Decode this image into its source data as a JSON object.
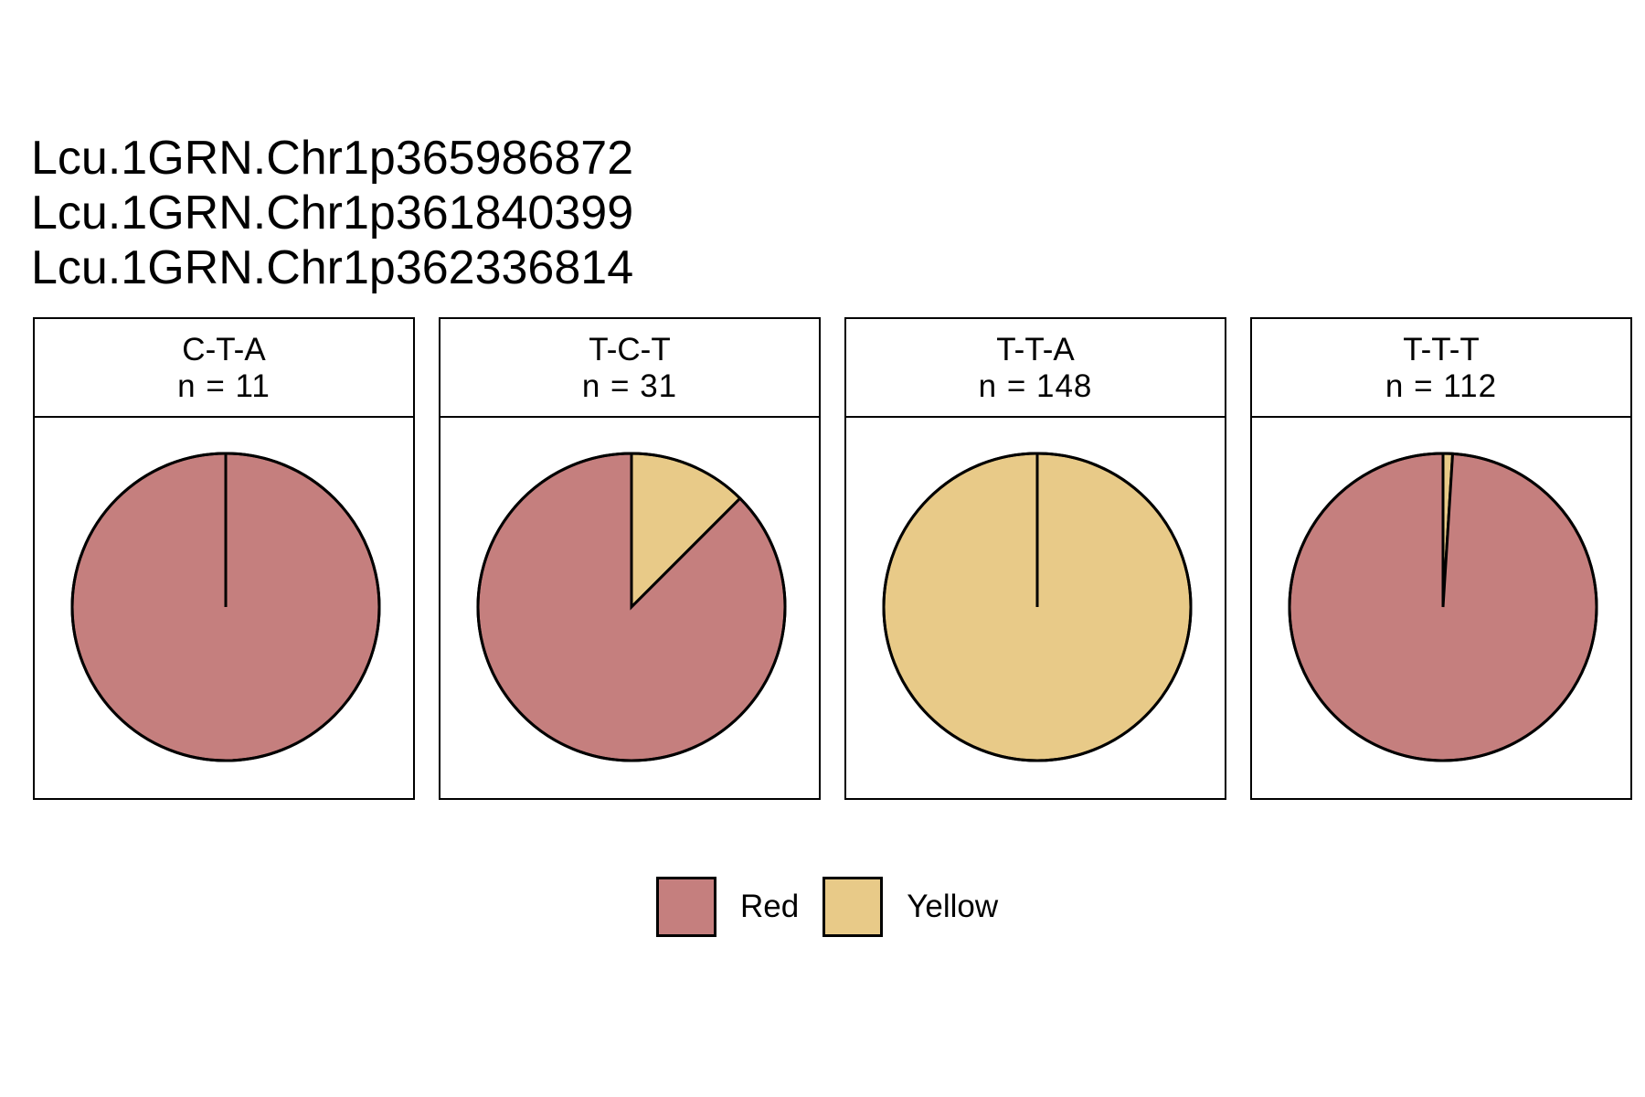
{
  "chart_data": {
    "type": "pie",
    "title_lines": [
      "Lcu.1GRN.Chr1p365986872",
      "Lcu.1GRN.Chr1p361840399",
      "Lcu.1GRN.Chr1p362336814"
    ],
    "legend": [
      {
        "name": "Red",
        "color": "#c57f7e"
      },
      {
        "name": "Yellow",
        "color": "#e8ca88"
      }
    ],
    "legend_position": "bottom",
    "panels": [
      {
        "label": "C-T-A",
        "n_label": "n = 11",
        "slices": [
          {
            "name": "Red",
            "value": 1.0
          },
          {
            "name": "Yellow",
            "value": 0.0
          }
        ]
      },
      {
        "label": "T-C-T",
        "n_label": "n = 31",
        "slices": [
          {
            "name": "Red",
            "value": 0.875
          },
          {
            "name": "Yellow",
            "value": 0.125
          }
        ]
      },
      {
        "label": "T-T-A",
        "n_label": "n = 148",
        "slices": [
          {
            "name": "Red",
            "value": 0.0
          },
          {
            "name": "Yellow",
            "value": 1.0
          }
        ]
      },
      {
        "label": "T-T-T",
        "n_label": "n = 112",
        "slices": [
          {
            "name": "Red",
            "value": 0.99
          },
          {
            "name": "Yellow",
            "value": 0.01
          }
        ]
      }
    ]
  }
}
